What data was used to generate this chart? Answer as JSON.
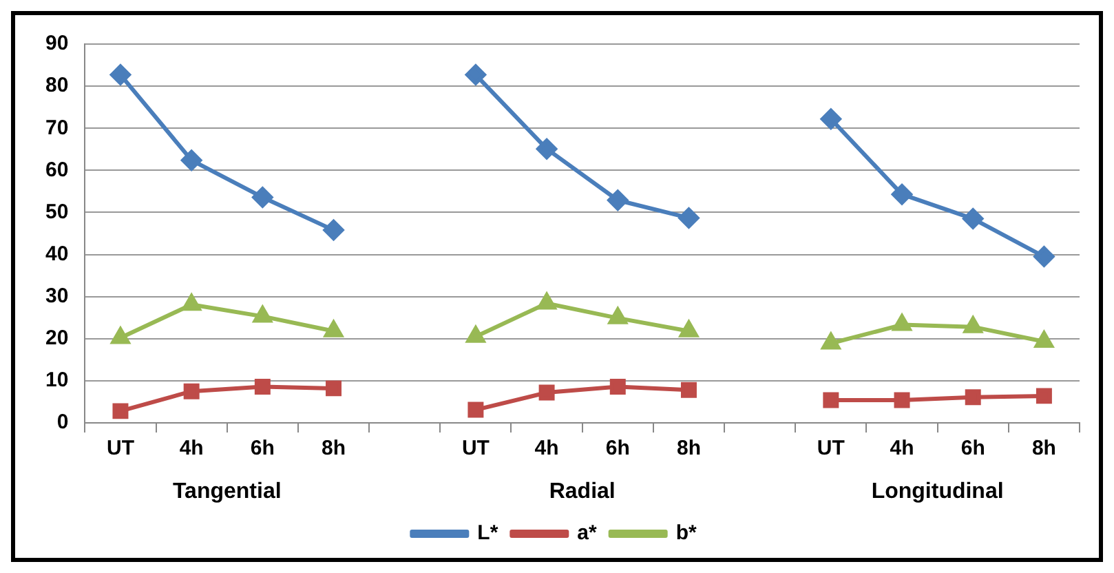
{
  "chart_data": {
    "type": "line",
    "categories": [
      "UT",
      "4h",
      "6h",
      "8h",
      null,
      "UT",
      "4h",
      "6h",
      "8h",
      null,
      "UT",
      "4h",
      "6h",
      "8h"
    ],
    "series": [
      {
        "name": "L*",
        "color": "#4a7ebb",
        "marker": "diamond",
        "values": [
          82.7,
          62.4,
          53.6,
          45.8,
          null,
          82.7,
          65.1,
          52.9,
          48.7,
          null,
          72.2,
          54.3,
          48.5,
          39.5
        ]
      },
      {
        "name": "a*",
        "color": "#be4b48",
        "marker": "square",
        "values": [
          2.8,
          7.5,
          8.6,
          8.2,
          null,
          3.1,
          7.2,
          8.6,
          7.8,
          null,
          5.4,
          5.4,
          6.1,
          6.4
        ]
      },
      {
        "name": "b*",
        "color": "#98b954",
        "marker": "triangle",
        "values": [
          20.2,
          28.1,
          25.3,
          21.8,
          null,
          20.5,
          28.4,
          24.9,
          21.8,
          null,
          18.9,
          23.3,
          22.8,
          19.3
        ]
      }
    ],
    "annotations": [
      "Tangential",
      "Radial",
      "Longitudinal"
    ],
    "ylim": [
      0,
      90
    ],
    "yticks": [
      0,
      10,
      20,
      30,
      40,
      50,
      60,
      70,
      80,
      90
    ],
    "grid": "y",
    "legend": "bottom",
    "line_style": "solid"
  }
}
